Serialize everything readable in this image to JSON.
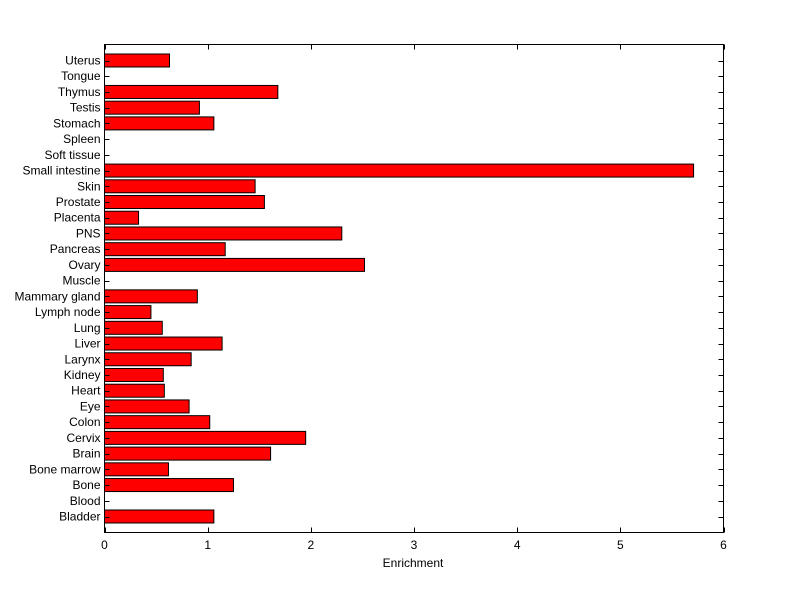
{
  "chart_data": {
    "type": "bar",
    "orientation": "horizontal",
    "title": "",
    "xlabel": "Enrichment",
    "ylabel": "",
    "xlim": [
      0,
      6
    ],
    "xticks": [
      "0",
      "1",
      "2",
      "3",
      "4",
      "5",
      "6"
    ],
    "grid": false,
    "legend": "none",
    "bar_color": "#ff0000",
    "bar_edge_color": "#000000",
    "categories": [
      "Uterus",
      "Tongue",
      "Thymus",
      "Testis",
      "Stomach",
      "Spleen",
      "Soft tissue",
      "Small intestine",
      "Skin",
      "Prostate",
      "Placenta",
      "PNS",
      "Pancreas",
      "Ovary",
      "Muscle",
      "Mammary gland",
      "Lymph node",
      "Lung",
      "Liver",
      "Larynx",
      "Kidney",
      "Heart",
      "Eye",
      "Colon",
      "Cervix",
      "Brain",
      "Bone marrow",
      "Bone",
      "Blood",
      "Bladder"
    ],
    "values": [
      0.63,
      0,
      1.68,
      0.92,
      1.06,
      0,
      0,
      5.71,
      1.46,
      1.55,
      0.33,
      2.3,
      1.17,
      2.52,
      0,
      0.9,
      0.45,
      0.56,
      1.14,
      0.84,
      0.57,
      0.58,
      0.82,
      1.02,
      1.95,
      1.61,
      0.62,
      1.25,
      0,
      1.06
    ]
  }
}
